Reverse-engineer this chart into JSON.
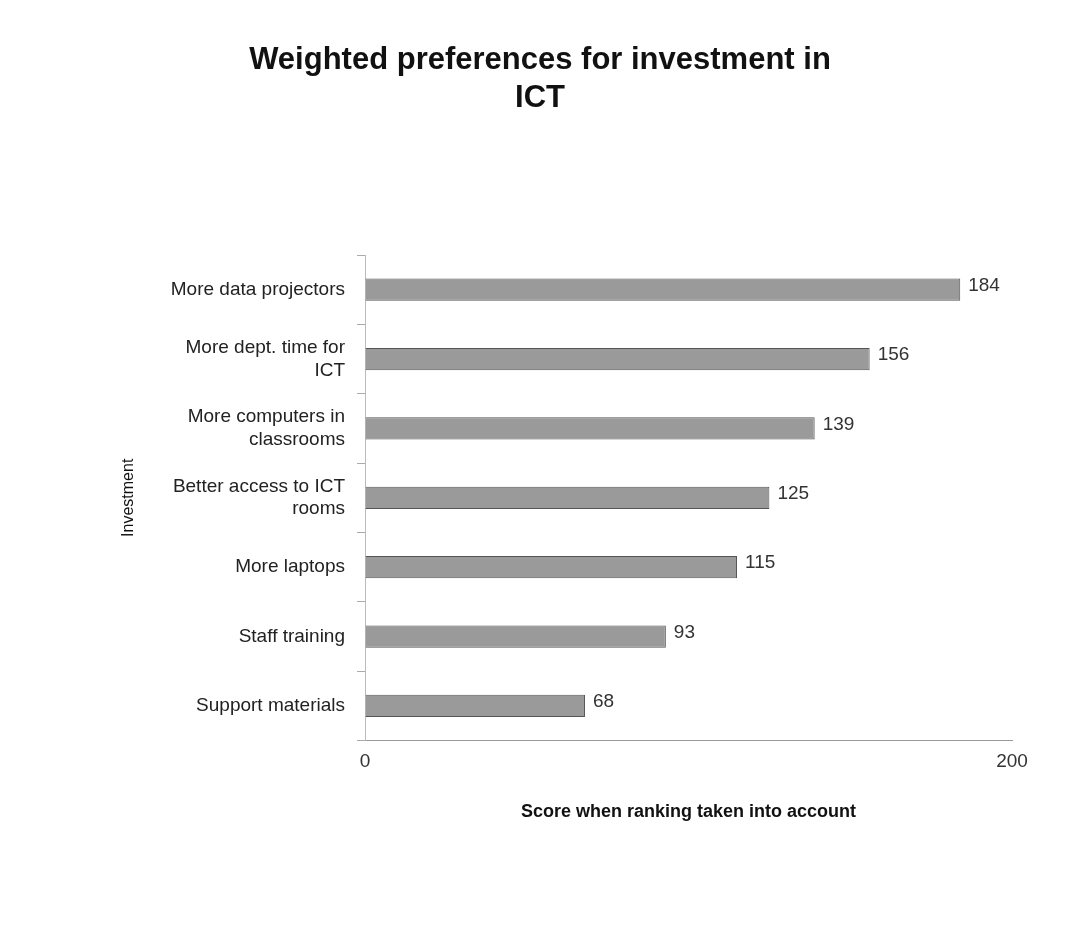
{
  "chart_data": {
    "type": "bar",
    "orientation": "horizontal",
    "title": "Weighted preferences for investment in ICT",
    "xlabel": "Score when ranking taken into account",
    "ylabel": "Investment",
    "categories": [
      "More data projectors",
      "More dept. time for ICT",
      "More computers in classrooms",
      "Better access to ICT rooms",
      "More laptops",
      "Staff training",
      "Support materials"
    ],
    "values": [
      184,
      156,
      139,
      125,
      115,
      93,
      68
    ],
    "color": "#9a9a9a",
    "xlim": [
      0,
      200
    ],
    "xticks": [
      0,
      200
    ],
    "data_labels": true,
    "grid": false,
    "legend": false
  }
}
